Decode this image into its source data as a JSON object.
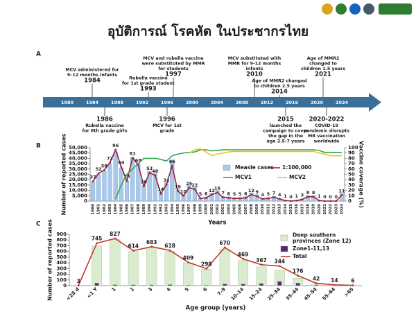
{
  "header": {
    "title": "อุบัติการณ์ โรคหัด ในประชากรไทย"
  },
  "timeline": {
    "panel": "A",
    "ticks": [
      "1980",
      "1984",
      "1988",
      "1992",
      "1996",
      "2000",
      "2004",
      "2008",
      "2012",
      "2016",
      "2020",
      "2024"
    ],
    "above": [
      {
        "year": "1984",
        "lines": [
          "MCV administered for",
          "9–12 months infants"
        ]
      },
      {
        "year": "1993",
        "lines": [
          "Rubella vaccine",
          "for 1st grade student"
        ]
      },
      {
        "year": "1997",
        "lines": [
          "MCV and rubella vaccine",
          "were substituted by MMR",
          "for students"
        ]
      },
      {
        "year": "2010",
        "lines": [
          "MCV substituted with",
          "MMR for 9-12 months",
          "infants"
        ]
      },
      {
        "year": "2014",
        "lines": [
          "Age of MMR2 changed",
          "to children 2.5 years"
        ]
      },
      {
        "year": "2021",
        "lines": [
          "Age of MMR2",
          "changed to",
          "children 1.5 years"
        ]
      }
    ],
    "below": [
      {
        "year": "1986",
        "lines": [
          "Rubella vaccine",
          "for 6th grade girls"
        ]
      },
      {
        "year": "1996",
        "lines": [
          "MCV for 1st",
          "grade"
        ]
      },
      {
        "year": "2015",
        "lines": [
          "launched the",
          "campaign to cover",
          "the gap in the",
          "age 2.5-7 years"
        ]
      },
      {
        "year": "2020-2022",
        "lines": [
          "COVID-19",
          "pandemic disrupts",
          "MR vaccination",
          "worldwide"
        ]
      }
    ]
  },
  "chart_data": [
    {
      "type": "combo",
      "panel": "B",
      "x_label": "Years",
      "y_label": "Number of reported cases",
      "y2_label": "Vaccine coverage (%)",
      "categories": [
        "1980",
        "1981",
        "1982",
        "1983",
        "1984",
        "1985",
        "1986",
        "1987",
        "1988",
        "1989",
        "1990",
        "1991",
        "1992",
        "1993",
        "1994",
        "1995",
        "1996",
        "1997",
        "1998",
        "1999",
        "2000",
        "2001",
        "2002",
        "2003",
        "2004",
        "2005",
        "2006",
        "2007",
        "2008",
        "2009",
        "2010",
        "2011",
        "2012",
        "2013",
        "2014",
        "2015",
        "2016",
        "2017",
        "2018",
        "2019",
        "2020",
        "2021",
        "2022",
        "2023",
        "2024"
      ],
      "series": [
        {
          "name": "Measle cases",
          "type": "bar",
          "color": "#a9c9ec",
          "values": [
            18000,
            25000,
            28000,
            35000,
            46000,
            31000,
            19000,
            41000,
            35000,
            15000,
            28000,
            26000,
            8000,
            17000,
            38000,
            11000,
            6000,
            15000,
            13000,
            3000,
            3500,
            7500,
            10000,
            4500,
            4000,
            3200,
            3300,
            4000,
            7800,
            6000,
            2600,
            3300,
            4600,
            2700,
            700,
            300,
            700,
            2000,
            5300,
            5300,
            700,
            200,
            100,
            200,
            7300
          ]
        },
        {
          "name": "1:100,000",
          "type": "line",
          "axis": "y2",
          "color": "#9b2335",
          "labels": true,
          "values": [
            37,
            52,
            58,
            72,
            96,
            64,
            38,
            81,
            68,
            28,
            53,
            48,
            14,
            31,
            66,
            19,
            10,
            25,
            22,
            5,
            6,
            12,
            16,
            7,
            6,
            5,
            5,
            6,
            12,
            9,
            4,
            5,
            7,
            4,
            1,
            0,
            1,
            3,
            8,
            8,
            1,
            0,
            0,
            0,
            11
          ]
        },
        {
          "name": "MCV1",
          "type": "line",
          "axis": "y2",
          "color": "#2fa84f",
          "values": [
            null,
            null,
            null,
            null,
            4,
            30,
            50,
            60,
            70,
            80,
            80,
            80,
            78,
            75,
            85,
            88,
            90,
            91,
            92,
            96,
            96,
            94,
            95,
            96,
            96,
            96,
            96,
            96,
            96,
            96,
            96,
            96,
            96,
            96,
            96,
            96,
            96,
            96,
            96,
            96,
            95,
            91,
            91,
            91,
            91
          ]
        },
        {
          "name": "MCV2",
          "type": "line",
          "axis": "y2",
          "color": "#f2c500",
          "values": [
            null,
            null,
            null,
            null,
            null,
            null,
            null,
            null,
            null,
            null,
            null,
            null,
            null,
            null,
            null,
            null,
            null,
            90,
            96,
            98,
            92,
            85,
            88,
            90,
            92,
            93,
            93,
            93,
            93,
            93,
            93,
            93,
            93,
            93,
            93,
            93,
            93,
            93,
            93,
            93,
            90,
            88,
            85,
            85,
            85
          ]
        }
      ],
      "ylim": [
        0,
        50000
      ],
      "yticks": [
        0,
        {
          "value": 5000,
          "label": "5,000"
        },
        {
          "value": 10000,
          "label": "10,000"
        },
        {
          "value": 15000,
          "label": "15,000"
        },
        {
          "value": 20000,
          "label": "20,000"
        },
        {
          "value": 25000,
          "label": "25,000"
        },
        {
          "value": 30000,
          "label": "30,000"
        },
        {
          "value": 35000,
          "label": "35,000"
        },
        {
          "value": 40000,
          "label": "40,000"
        },
        {
          "value": 45000,
          "label": "45,000"
        },
        {
          "value": 50000,
          "label": "50,000"
        }
      ],
      "y2lim": [
        0,
        100
      ],
      "y2ticks": [
        0,
        10,
        20,
        30,
        40,
        50,
        60,
        70,
        80,
        90,
        100
      ]
    },
    {
      "type": "combo",
      "panel": "C",
      "x_label": "Age group (years)",
      "y_label": "Number of reported cases",
      "categories": [
        "<28 d",
        "<1 Y",
        "1",
        "2",
        "3",
        "4",
        "5",
        "6",
        "7–9",
        "10–14",
        "15–24",
        "25–34",
        "35–44",
        "45–54",
        "55–64",
        ">65"
      ],
      "series": [
        {
          "name": "Deep southern provinces (Zone 12)",
          "type": "bar",
          "width": 0.55,
          "color": "#d9ecd0",
          "values": [
            0,
            700,
            810,
            600,
            670,
            600,
            400,
            290,
            640,
            440,
            330,
            270,
            130,
            30,
            10,
            5
          ]
        },
        {
          "name": "Zone1-11,13",
          "type": "bar",
          "width": 0.22,
          "color": "#5b2a6e",
          "values": [
            3,
            45,
            17,
            14,
            13,
            18,
            9,
            8,
            30,
            29,
            37,
            74,
            46,
            12,
            4,
            1
          ]
        },
        {
          "name": "Total",
          "type": "line",
          "color": "#c0392b",
          "labels": true,
          "values": [
            3,
            745,
            827,
            614,
            683,
            618,
            409,
            298,
            670,
            469,
            367,
            344,
            176,
            42,
            14,
            6
          ]
        }
      ],
      "ylim": [
        0,
        900
      ],
      "yticks": [
        0,
        100,
        200,
        300,
        400,
        500,
        600,
        700,
        800,
        900
      ]
    }
  ]
}
